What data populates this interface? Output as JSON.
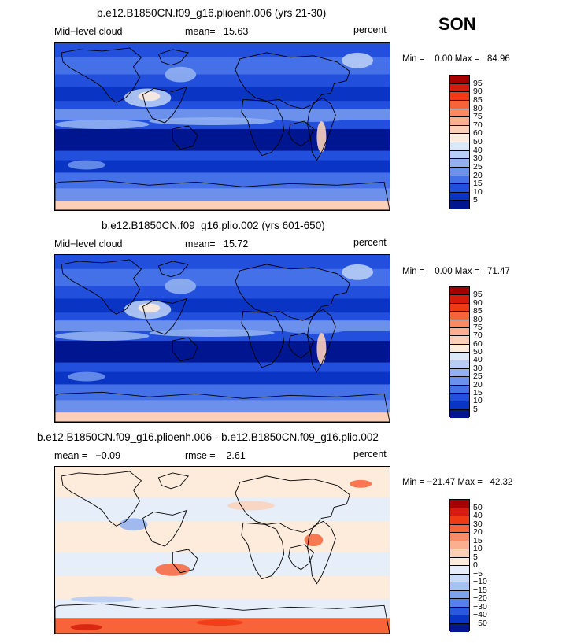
{
  "season": "SON",
  "panels": [
    {
      "title": "b.e12.B1850CN.f09_g16.plioenh.006 (yrs 21-30)",
      "left_label": "Mid−level cloud",
      "mid_label": "mean=   15.63",
      "right_label": "percent",
      "minmax": "Min =    0.00 Max =   84.96",
      "colorbar": {
        "labels": [
          "95",
          "90",
          "85",
          "80",
          "75",
          "70",
          "60",
          "50",
          "40",
          "30",
          "25",
          "20",
          "15",
          "10",
          "5"
        ],
        "colors": [
          "#a50000",
          "#d51c0c",
          "#ef3a14",
          "#f7643a",
          "#fa8a63",
          "#fcaf90",
          "#fcd0b8",
          "#fdebdc",
          "#dbe8f7",
          "#b7cdf5",
          "#92b0f0",
          "#6b91ec",
          "#4470e8",
          "#2250dc",
          "#0a34c4",
          "#001690"
        ]
      },
      "map_style": "cloud"
    },
    {
      "title": "b.e12.B1850CN.f09_g16.plio.002 (yrs 601-650)",
      "left_label": "Mid−level cloud",
      "mid_label": "mean=   15.72",
      "right_label": "percent",
      "minmax": "Min =    0.00 Max =   71.47",
      "colorbar": {
        "labels": [
          "95",
          "90",
          "85",
          "80",
          "75",
          "70",
          "60",
          "50",
          "40",
          "30",
          "25",
          "20",
          "15",
          "10",
          "5"
        ],
        "colors": [
          "#a50000",
          "#d51c0c",
          "#ef3a14",
          "#f7643a",
          "#fa8a63",
          "#fcaf90",
          "#fcd0b8",
          "#fdebdc",
          "#dbe8f7",
          "#b7cdf5",
          "#92b0f0",
          "#6b91ec",
          "#4470e8",
          "#2250dc",
          "#0a34c4",
          "#001690"
        ]
      },
      "map_style": "cloud"
    },
    {
      "title": "b.e12.B1850CN.f09_g16.plioenh.006 - b.e12.B1850CN.f09_g16.plio.002",
      "left_label": "mean =   −0.09",
      "mid_label": "rmse =    2.61",
      "right_label": "percent",
      "minmax": "Min = −21.47 Max =   42.32",
      "colorbar": {
        "labels": [
          "50",
          "40",
          "30",
          "20",
          "15",
          "10",
          "5",
          "0",
          "−5",
          "−10",
          "−15",
          "−20",
          "−30",
          "−40",
          "−50"
        ],
        "colors": [
          "#a50000",
          "#d51c0c",
          "#ef3a14",
          "#f7643a",
          "#fa8a63",
          "#fcaf90",
          "#fcd0b8",
          "#fdebdc",
          "#e6eefa",
          "#c9daf6",
          "#a6c1f2",
          "#7ea2ee",
          "#5680ea",
          "#2c58dc",
          "#0a34c4",
          "#001690"
        ]
      },
      "map_style": "diff"
    }
  ]
}
